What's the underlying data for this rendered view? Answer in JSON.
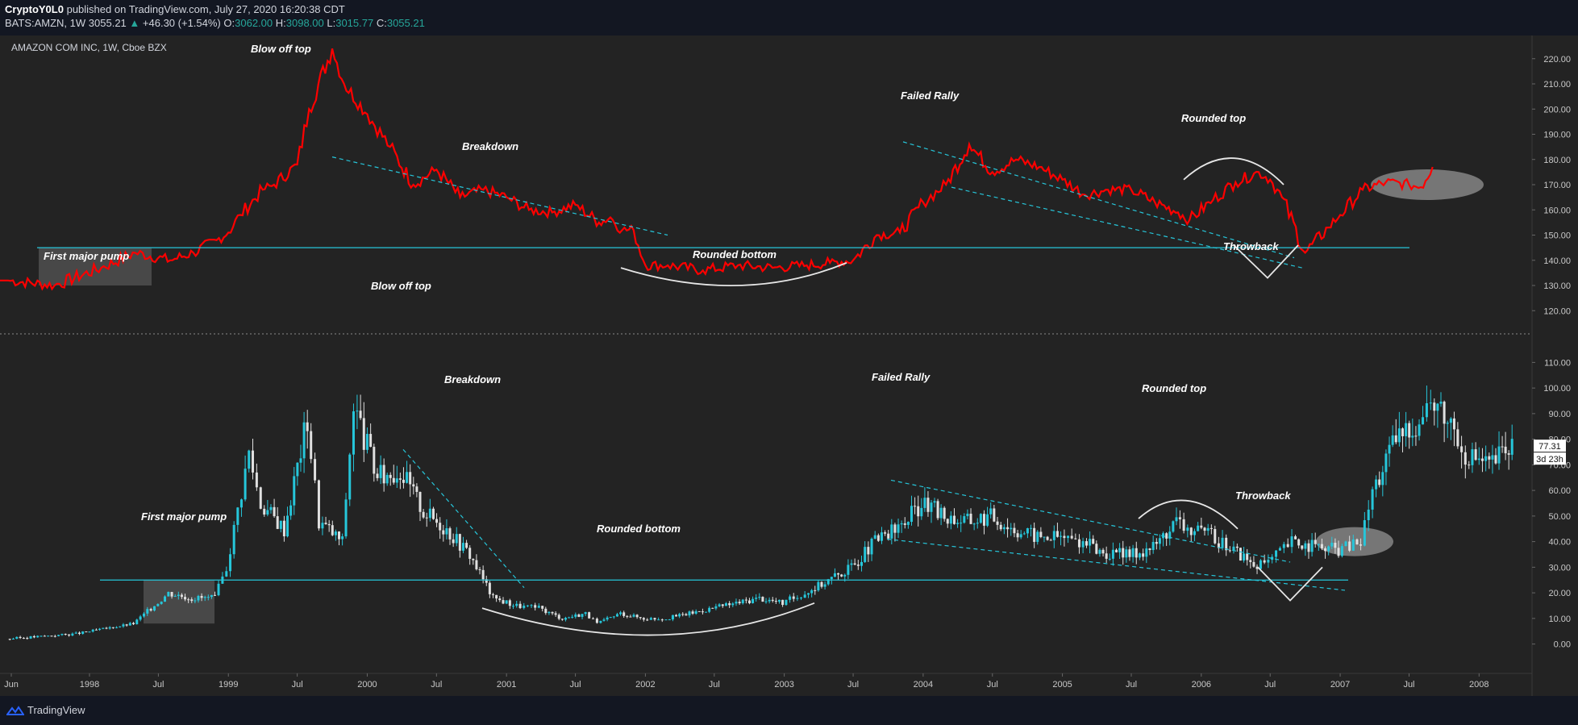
{
  "header": {
    "author": "CryptoY0L0",
    "published": "published on TradingView.com, July 27, 2020 16:20:38 CDT",
    "symbol_line": "BATS:AMZN, 1W",
    "last": "3055.21",
    "change": "+46.30 (+1.54%)",
    "o_label": "O:",
    "o_value": "3062.00",
    "h_label": "H:",
    "h_value": "3098.00",
    "l_label": "L:",
    "l_value": "3015.77",
    "c_label": "C:",
    "c_value": "3055.21"
  },
  "footer": {
    "brand": "TradingView"
  },
  "colors": {
    "background": "#232323",
    "red_line": "#ff0000",
    "candle_up": "#26c6da",
    "candle_down": "#e0e0e0",
    "support": "#26c6da",
    "trend_dash": "#26c6da",
    "annotation": "#ffffff"
  },
  "chart_data": [
    {
      "type": "line",
      "title": "AMAZON COM INC, 1W, Cboe BZX",
      "series": [
        {
          "x": [
            "1997-06",
            "1997-10",
            "1998-02",
            "1998-05",
            "1998-08",
            "1998-10",
            "1998-12",
            "1999-01",
            "1999-02",
            "1999-04",
            "1999-05",
            "1999-07",
            "1999-08",
            "1999-10",
            "1999-11",
            "2000-01",
            "2000-03",
            "2000-05",
            "2000-07",
            "2000-09",
            "2000-11",
            "2001-01",
            "2001-03",
            "2001-05",
            "2001-07",
            "2001-09",
            "2001-10",
            "2001-11",
            "2001-12",
            "2002-01",
            "2002-03",
            "2002-06",
            "2002-09",
            "2002-12",
            "2003-03",
            "2003-05",
            "2003-07",
            "2003-09",
            "2003-11",
            "2004-01",
            "2004-03",
            "2004-05",
            "2004-07",
            "2004-09",
            "2004-11",
            "2005-01",
            "2005-03",
            "2005-05",
            "2005-07",
            "2005-09",
            "2005-11",
            "2005-12",
            "2006-02",
            "2006-04",
            "2006-06",
            "2006-07",
            "2006-08",
            "2006-10",
            "2006-12",
            "2007-01",
            "2007-03",
            "2007-05",
            "2007-07",
            "2007-08",
            "2007-09"
          ],
          "values": [
            132,
            130,
            137,
            143,
            140,
            143,
            148,
            151,
            158,
            168,
            170,
            178,
            200,
            224,
            210,
            198,
            185,
            170,
            176,
            165,
            168,
            165,
            160,
            159,
            162,
            155,
            157,
            152,
            152,
            138,
            138,
            136,
            138,
            137,
            138,
            139,
            140,
            150,
            151,
            163,
            170,
            186,
            175,
            180,
            177,
            172,
            166,
            168,
            168,
            163,
            159,
            156,
            164,
            171,
            175,
            172,
            165,
            143,
            153,
            158,
            168,
            171,
            170,
            169,
            177
          ]
        }
      ],
      "annotations": [
        "Blow off top",
        "Breakdown",
        "Failed Rally",
        "Rounded top",
        "First major pump",
        "Rounded bottom",
        "Throwback"
      ],
      "ylim": [
        114,
        226
      ],
      "yticks": [
        "220.00",
        "210.00",
        "200.00",
        "190.00",
        "180.00",
        "170.00",
        "160.00",
        "150.00",
        "140.00",
        "130.00",
        "120.00"
      ],
      "support_level": 145,
      "grid": false
    },
    {
      "type": "candlestick",
      "series": [
        {
          "x": [
            "1997-06",
            "1997-12",
            "1998-05",
            "1998-08",
            "1998-10",
            "1998-12",
            "1999-01",
            "1999-03",
            "1999-04",
            "1999-06",
            "1999-08",
            "1999-09",
            "1999-11",
            "1999-12",
            "2000-02",
            "2000-04",
            "2000-06",
            "2000-08",
            "2000-10",
            "2000-12",
            "2001-02",
            "2001-04",
            "2001-06",
            "2001-08",
            "2001-09",
            "2001-11",
            "2002-01",
            "2002-03",
            "2002-05",
            "2002-07",
            "2002-09",
            "2002-11",
            "2003-01",
            "2003-03",
            "2003-05",
            "2003-07",
            "2003-09",
            "2003-11",
            "2004-01",
            "2004-03",
            "2004-05",
            "2004-07",
            "2004-09",
            "2004-11",
            "2005-01",
            "2005-03",
            "2005-05",
            "2005-07",
            "2005-09",
            "2005-11",
            "2005-12",
            "2006-02",
            "2006-04",
            "2006-06",
            "2006-07",
            "2006-08",
            "2006-09",
            "2006-11",
            "2007-01",
            "2007-03",
            "2007-04",
            "2007-06",
            "2007-08",
            "2007-09",
            "2007-11",
            "2007-12",
            "2008-02",
            "2008-04"
          ],
          "values": [
            2,
            4,
            8,
            20,
            18,
            18,
            30,
            75,
            55,
            45,
            88,
            48,
            40,
            93,
            65,
            68,
            52,
            45,
            35,
            18,
            15,
            14,
            10,
            12,
            8,
            12,
            10,
            10,
            12,
            14,
            16,
            18,
            16,
            20,
            25,
            30,
            40,
            45,
            55,
            50,
            48,
            50,
            45,
            42,
            42,
            40,
            35,
            35,
            38,
            48,
            45,
            42,
            37,
            30,
            32,
            36,
            40,
            38,
            37,
            40,
            60,
            80,
            88,
            95,
            85,
            75,
            70,
            78
          ]
        }
      ],
      "annotations": [
        "Blow off top",
        "Breakdown",
        "Failed Rally",
        "Rounded top",
        "First major pump",
        "Rounded bottom",
        "Throwback"
      ],
      "ylim": [
        -8,
        118
      ],
      "yticks": [
        "110.00",
        "100.00",
        "90.00",
        "80.00",
        "70.00",
        "60.00",
        "50.00",
        "40.00",
        "30.00",
        "20.00",
        "10.00",
        "0.00"
      ],
      "support_level": 25,
      "last_price": "77.31",
      "countdown": "3d 23h",
      "xticks": [
        "Jun",
        "1998",
        "Jul",
        "1999",
        "Jul",
        "2000",
        "Jul",
        "2001",
        "Jul",
        "2002",
        "Jul",
        "2003",
        "Jul",
        "2004",
        "Jul",
        "2005",
        "Jul",
        "2006",
        "Jul",
        "2007",
        "Jul",
        "2008"
      ],
      "grid": false
    }
  ]
}
